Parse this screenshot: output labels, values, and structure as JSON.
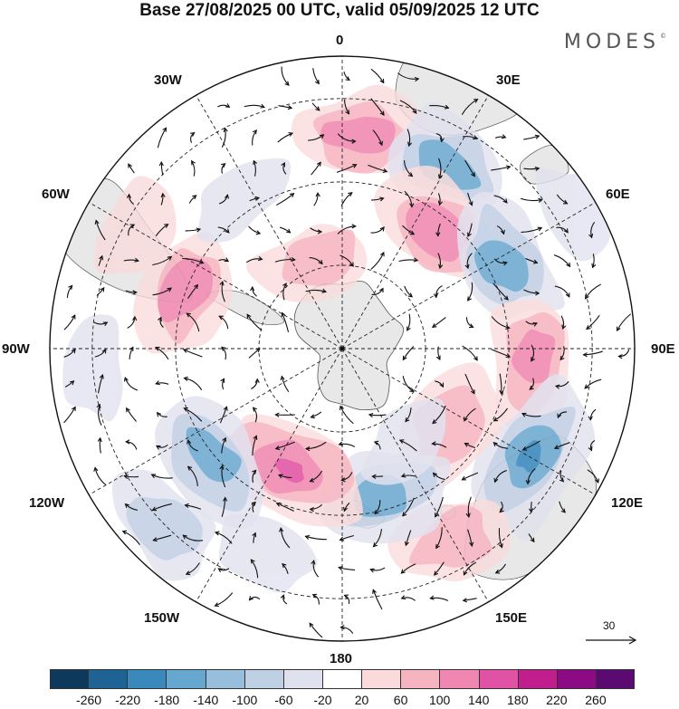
{
  "title": "Base 27/08/2025 00 UTC, valid 05/09/2025 12 UTC",
  "brand": "MODES",
  "brand_mark": "©",
  "longitude_labels": [
    "0",
    "30E",
    "60E",
    "90E",
    "120E",
    "150E",
    "180",
    "150W",
    "120W",
    "90W",
    "60W",
    "30W"
  ],
  "reference_vector": {
    "label": "30"
  },
  "colorbar": {
    "ticks": [
      "-260",
      "-220",
      "-180",
      "-140",
      "-100",
      "-60",
      "-20",
      "20",
      "60",
      "100",
      "140",
      "180",
      "220",
      "260"
    ],
    "colors": [
      "#0d3a5c",
      "#1f6394",
      "#3a89bd",
      "#66a7cf",
      "#97bfdc",
      "#bfcfe4",
      "#e0e1ef",
      "#ffffff",
      "#fadadb",
      "#f6b3c0",
      "#f087b2",
      "#e052a4",
      "#c01e8c",
      "#8c0a83",
      "#5a0a70"
    ]
  },
  "colors": {
    "land": "#e8e8e8",
    "ocean": "#ffffff",
    "coast": "#555555",
    "pos_light": "#fadadb",
    "pos_mid": "#f6b3c0",
    "pos_strong": "#f087b2",
    "pos_max": "#e052a4",
    "neg_light": "#e0e1ef",
    "neg_mid": "#bfcfe4",
    "neg_strong": "#66a7cf",
    "neg_max": "#3a89bd"
  },
  "anomalies": [
    {
      "lon": 5,
      "r": 0.73,
      "sign": 1,
      "level": 3
    },
    {
      "lon": 30,
      "r": 0.72,
      "sign": -1,
      "level": 3
    },
    {
      "lon": 40,
      "r": 0.52,
      "sign": 1,
      "level": 3
    },
    {
      "lon": 62,
      "r": 0.62,
      "sign": -1,
      "level": 3
    },
    {
      "lon": 92,
      "r": 0.66,
      "sign": 1,
      "level": 3
    },
    {
      "lon": 120,
      "r": 0.74,
      "sign": -1,
      "level": 4
    },
    {
      "lon": 127,
      "r": 0.45,
      "sign": 1,
      "level": 2
    },
    {
      "lon": 150,
      "r": 0.75,
      "sign": 1,
      "level": 2
    },
    {
      "lon": 165,
      "r": 0.52,
      "sign": -1,
      "level": 3
    },
    {
      "lon": 142,
      "r": 0.38,
      "sign": -1,
      "level": 1
    },
    {
      "lon": 203,
      "r": 0.45,
      "sign": 1,
      "level": 4
    },
    {
      "lon": 230,
      "r": 0.58,
      "sign": -1,
      "level": 3
    },
    {
      "lon": 200,
      "r": 0.76,
      "sign": -1,
      "level": 1
    },
    {
      "lon": 290,
      "r": 0.57,
      "sign": 1,
      "level": 3
    },
    {
      "lon": 265,
      "r": 0.85,
      "sign": -1,
      "level": 1
    },
    {
      "lon": 325,
      "r": 0.63,
      "sign": -1,
      "level": 1
    },
    {
      "lon": 345,
      "r": 0.31,
      "sign": 1,
      "level": 2
    },
    {
      "lon": 300,
      "r": 0.82,
      "sign": 1,
      "level": 1
    },
    {
      "lon": 60,
      "r": 0.93,
      "sign": -1,
      "level": 1
    },
    {
      "lon": 225,
      "r": 0.86,
      "sign": -1,
      "level": 2
    }
  ]
}
